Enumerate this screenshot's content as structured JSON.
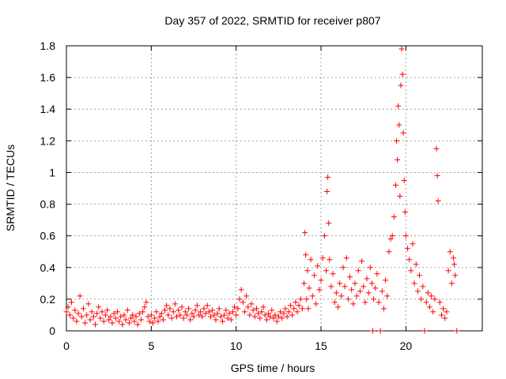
{
  "chart_data": {
    "type": "scatter",
    "title": "Day 357 of 2022, SRMTID for receiver p807",
    "xlabel": "GPS time / hours",
    "ylabel": "SRMTID / TECUs",
    "xlim": [
      0,
      24.5
    ],
    "ylim": [
      0,
      1.8
    ],
    "x_ticks": [
      0,
      5,
      10,
      15,
      20
    ],
    "x_tick_labels": [
      "0",
      "5",
      "10",
      "15",
      "20"
    ],
    "y_ticks": [
      0,
      0.2,
      0.4,
      0.6,
      0.8,
      1.0,
      1.2,
      1.4,
      1.6,
      1.8
    ],
    "y_tick_labels": [
      "0",
      "0.2",
      "0.4",
      "0.6",
      "0.8",
      "1",
      "1.2",
      "1.4",
      "1.6",
      "1.8"
    ],
    "grid": true,
    "marker": "+",
    "color": "#ff0000",
    "series": [
      {
        "name": "SRMTID",
        "points": [
          [
            0.0,
            0.12
          ],
          [
            0.1,
            0.15
          ],
          [
            0.2,
            0.1
          ],
          [
            0.3,
            0.18
          ],
          [
            0.4,
            0.08
          ],
          [
            0.5,
            0.13
          ],
          [
            0.6,
            0.06
          ],
          [
            0.7,
            0.11
          ],
          [
            0.8,
            0.22
          ],
          [
            0.9,
            0.09
          ],
          [
            1.0,
            0.14
          ],
          [
            1.1,
            0.05
          ],
          [
            1.2,
            0.1
          ],
          [
            1.3,
            0.17
          ],
          [
            1.4,
            0.07
          ],
          [
            1.5,
            0.12
          ],
          [
            1.6,
            0.09
          ],
          [
            1.7,
            0.04
          ],
          [
            1.8,
            0.11
          ],
          [
            1.9,
            0.15
          ],
          [
            2.0,
            0.08
          ],
          [
            2.1,
            0.12
          ],
          [
            2.2,
            0.06
          ],
          [
            2.3,
            0.1
          ],
          [
            2.4,
            0.13
          ],
          [
            2.5,
            0.07
          ],
          [
            2.6,
            0.09
          ],
          [
            2.7,
            0.05
          ],
          [
            2.8,
            0.11
          ],
          [
            2.9,
            0.08
          ],
          [
            3.0,
            0.12
          ],
          [
            3.1,
            0.06
          ],
          [
            3.2,
            0.09
          ],
          [
            3.3,
            0.04
          ],
          [
            3.4,
            0.1
          ],
          [
            3.5,
            0.07
          ],
          [
            3.6,
            0.13
          ],
          [
            3.7,
            0.05
          ],
          [
            3.8,
            0.08
          ],
          [
            3.9,
            0.1
          ],
          [
            4.0,
            0.06
          ],
          [
            4.1,
            0.09
          ],
          [
            4.2,
            0.04
          ],
          [
            4.3,
            0.11
          ],
          [
            4.4,
            0.07
          ],
          [
            4.5,
            0.12
          ],
          [
            4.6,
            0.15
          ],
          [
            4.7,
            0.18
          ],
          [
            4.8,
            0.09
          ],
          [
            4.9,
            0.06
          ],
          [
            5.0,
            0.1
          ],
          [
            5.1,
            0.05
          ],
          [
            5.2,
            0.08
          ],
          [
            5.3,
            0.12
          ],
          [
            5.4,
            0.06
          ],
          [
            5.5,
            0.09
          ],
          [
            5.6,
            0.11
          ],
          [
            5.7,
            0.07
          ],
          [
            5.8,
            0.13
          ],
          [
            5.9,
            0.16
          ],
          [
            6.0,
            0.1
          ],
          [
            6.1,
            0.14
          ],
          [
            6.2,
            0.08
          ],
          [
            6.3,
            0.12
          ],
          [
            6.4,
            0.17
          ],
          [
            6.5,
            0.09
          ],
          [
            6.6,
            0.13
          ],
          [
            6.7,
            0.1
          ],
          [
            6.8,
            0.15
          ],
          [
            6.9,
            0.08
          ],
          [
            7.0,
            0.12
          ],
          [
            7.1,
            0.1
          ],
          [
            7.2,
            0.14
          ],
          [
            7.3,
            0.07
          ],
          [
            7.4,
            0.11
          ],
          [
            7.5,
            0.09
          ],
          [
            7.6,
            0.13
          ],
          [
            7.7,
            0.16
          ],
          [
            7.8,
            0.1
          ],
          [
            7.9,
            0.12
          ],
          [
            8.0,
            0.09
          ],
          [
            8.1,
            0.14
          ],
          [
            8.2,
            0.11
          ],
          [
            8.3,
            0.16
          ],
          [
            8.4,
            0.12
          ],
          [
            8.5,
            0.09
          ],
          [
            8.6,
            0.13
          ],
          [
            8.7,
            0.1
          ],
          [
            8.8,
            0.07
          ],
          [
            8.9,
            0.11
          ],
          [
            9.0,
            0.14
          ],
          [
            9.1,
            0.09
          ],
          [
            9.2,
            0.06
          ],
          [
            9.3,
            0.1
          ],
          [
            9.4,
            0.13
          ],
          [
            9.5,
            0.08
          ],
          [
            9.6,
            0.11
          ],
          [
            9.7,
            0.07
          ],
          [
            9.8,
            0.12
          ],
          [
            9.9,
            0.15
          ],
          [
            10.0,
            0.1
          ],
          [
            10.1,
            0.14
          ],
          [
            10.2,
            0.2
          ],
          [
            10.3,
            0.26
          ],
          [
            10.4,
            0.18
          ],
          [
            10.5,
            0.12
          ],
          [
            10.6,
            0.22
          ],
          [
            10.7,
            0.15
          ],
          [
            10.8,
            0.1
          ],
          [
            10.9,
            0.17
          ],
          [
            11.0,
            0.13
          ],
          [
            11.1,
            0.09
          ],
          [
            11.2,
            0.14
          ],
          [
            11.3,
            0.11
          ],
          [
            11.4,
            0.08
          ],
          [
            11.5,
            0.12
          ],
          [
            11.6,
            0.15
          ],
          [
            11.7,
            0.1
          ],
          [
            11.8,
            0.07
          ],
          [
            11.9,
            0.11
          ],
          [
            12.0,
            0.09
          ],
          [
            12.1,
            0.13
          ],
          [
            12.2,
            0.08
          ],
          [
            12.3,
            0.1
          ],
          [
            12.4,
            0.06
          ],
          [
            12.5,
            0.09
          ],
          [
            12.6,
            0.12
          ],
          [
            12.7,
            0.08
          ],
          [
            12.8,
            0.11
          ],
          [
            12.9,
            0.14
          ],
          [
            13.0,
            0.09
          ],
          [
            13.1,
            0.12
          ],
          [
            13.2,
            0.16
          ],
          [
            13.3,
            0.1
          ],
          [
            13.4,
            0.14
          ],
          [
            13.5,
            0.18
          ],
          [
            13.6,
            0.12
          ],
          [
            13.7,
            0.16
          ],
          [
            13.8,
            0.2
          ],
          [
            13.9,
            0.14
          ],
          [
            14.0,
            0.3
          ],
          [
            14.05,
            0.62
          ],
          [
            14.1,
            0.48
          ],
          [
            14.15,
            0.2
          ],
          [
            14.2,
            0.38
          ],
          [
            14.25,
            0.14
          ],
          [
            14.3,
            0.27
          ],
          [
            14.4,
            0.45
          ],
          [
            14.5,
            0.22
          ],
          [
            14.6,
            0.35
          ],
          [
            14.7,
            0.17
          ],
          [
            14.8,
            0.41
          ],
          [
            14.9,
            0.26
          ],
          [
            15.0,
            0.32
          ],
          [
            15.1,
            0.46
          ],
          [
            15.2,
            0.6
          ],
          [
            15.3,
            0.38
          ],
          [
            15.35,
            0.88
          ],
          [
            15.4,
            0.97
          ],
          [
            15.45,
            0.68
          ],
          [
            15.5,
            0.45
          ],
          [
            15.6,
            0.28
          ],
          [
            15.7,
            0.36
          ],
          [
            15.8,
            0.18
          ],
          [
            15.9,
            0.24
          ],
          [
            16.0,
            0.15
          ],
          [
            16.1,
            0.3
          ],
          [
            16.2,
            0.22
          ],
          [
            16.3,
            0.4
          ],
          [
            16.4,
            0.28
          ],
          [
            16.5,
            0.46
          ],
          [
            16.6,
            0.2
          ],
          [
            16.7,
            0.34
          ],
          [
            16.8,
            0.26
          ],
          [
            16.9,
            0.17
          ],
          [
            17.0,
            0.3
          ],
          [
            17.1,
            0.22
          ],
          [
            17.2,
            0.38
          ],
          [
            17.3,
            0.25
          ],
          [
            17.4,
            0.44
          ],
          [
            17.5,
            0.28
          ],
          [
            17.6,
            0.18
          ],
          [
            17.7,
            0.33
          ],
          [
            17.8,
            0.24
          ],
          [
            17.9,
            0.4
          ],
          [
            18.0,
            0.3
          ],
          [
            18.05,
            0.0
          ],
          [
            18.1,
            0.2
          ],
          [
            18.2,
            0.27
          ],
          [
            18.3,
            0.36
          ],
          [
            18.4,
            0.18
          ],
          [
            18.5,
            0.0
          ],
          [
            18.6,
            0.25
          ],
          [
            18.7,
            0.14
          ],
          [
            18.8,
            0.32
          ],
          [
            18.9,
            0.22
          ],
          [
            19.0,
            0.5
          ],
          [
            19.1,
            0.58
          ],
          [
            19.2,
            0.6
          ],
          [
            19.3,
            0.72
          ],
          [
            19.4,
            0.92
          ],
          [
            19.45,
            1.2
          ],
          [
            19.5,
            1.08
          ],
          [
            19.55,
            1.42
          ],
          [
            19.6,
            1.3
          ],
          [
            19.65,
            0.85
          ],
          [
            19.7,
            1.55
          ],
          [
            19.75,
            1.78
          ],
          [
            19.8,
            1.62
          ],
          [
            19.85,
            1.25
          ],
          [
            19.9,
            0.95
          ],
          [
            19.95,
            0.75
          ],
          [
            20.0,
            0.6
          ],
          [
            20.1,
            0.52
          ],
          [
            20.2,
            0.45
          ],
          [
            20.3,
            0.38
          ],
          [
            20.4,
            0.55
          ],
          [
            20.5,
            0.3
          ],
          [
            20.6,
            0.42
          ],
          [
            20.7,
            0.25
          ],
          [
            20.8,
            0.35
          ],
          [
            20.9,
            0.2
          ],
          [
            21.0,
            0.28
          ],
          [
            21.1,
            0.0
          ],
          [
            21.2,
            0.18
          ],
          [
            21.3,
            0.24
          ],
          [
            21.4,
            0.15
          ],
          [
            21.5,
            0.22
          ],
          [
            21.6,
            0.12
          ],
          [
            21.7,
            0.2
          ],
          [
            21.8,
            1.15
          ],
          [
            21.85,
            0.98
          ],
          [
            21.9,
            0.82
          ],
          [
            22.0,
            0.18
          ],
          [
            22.1,
            0.1
          ],
          [
            22.2,
            0.14
          ],
          [
            22.3,
            0.08
          ],
          [
            22.4,
            0.12
          ],
          [
            22.5,
            0.38
          ],
          [
            22.6,
            0.5
          ],
          [
            22.7,
            0.3
          ],
          [
            22.8,
            0.46
          ],
          [
            22.85,
            0.42
          ],
          [
            22.9,
            0.35
          ],
          [
            23.0,
            0.0
          ]
        ]
      }
    ]
  }
}
